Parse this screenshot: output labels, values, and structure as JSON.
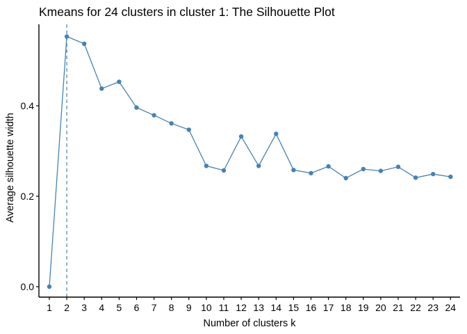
{
  "chart_data": {
    "type": "line",
    "title": "Kmeans for 24 clusters in cluster 1: The Silhouette Plot",
    "xlabel": "Number of clusters k",
    "ylabel": "Average silhouette width",
    "categories": [
      "1",
      "2",
      "3",
      "4",
      "5",
      "6",
      "7",
      "8",
      "9",
      "10",
      "11",
      "12",
      "13",
      "14",
      "15",
      "16",
      "17",
      "18",
      "19",
      "20",
      "21",
      "22",
      "23",
      "24"
    ],
    "series": [
      {
        "values": [
          0.0,
          0.553,
          0.537,
          0.438,
          0.453,
          0.396,
          0.379,
          0.361,
          0.347,
          0.267,
          0.257,
          0.332,
          0.267,
          0.338,
          0.258,
          0.251,
          0.266,
          0.24,
          0.26,
          0.256,
          0.265,
          0.241,
          0.249,
          0.243
        ]
      }
    ],
    "optimal_k": 2,
    "yticks": [
      "0.0",
      "0.2",
      "0.4"
    ],
    "ylim": [
      0,
      0.553
    ],
    "line_color": "#4682B4",
    "grid": false,
    "legend": "none"
  }
}
